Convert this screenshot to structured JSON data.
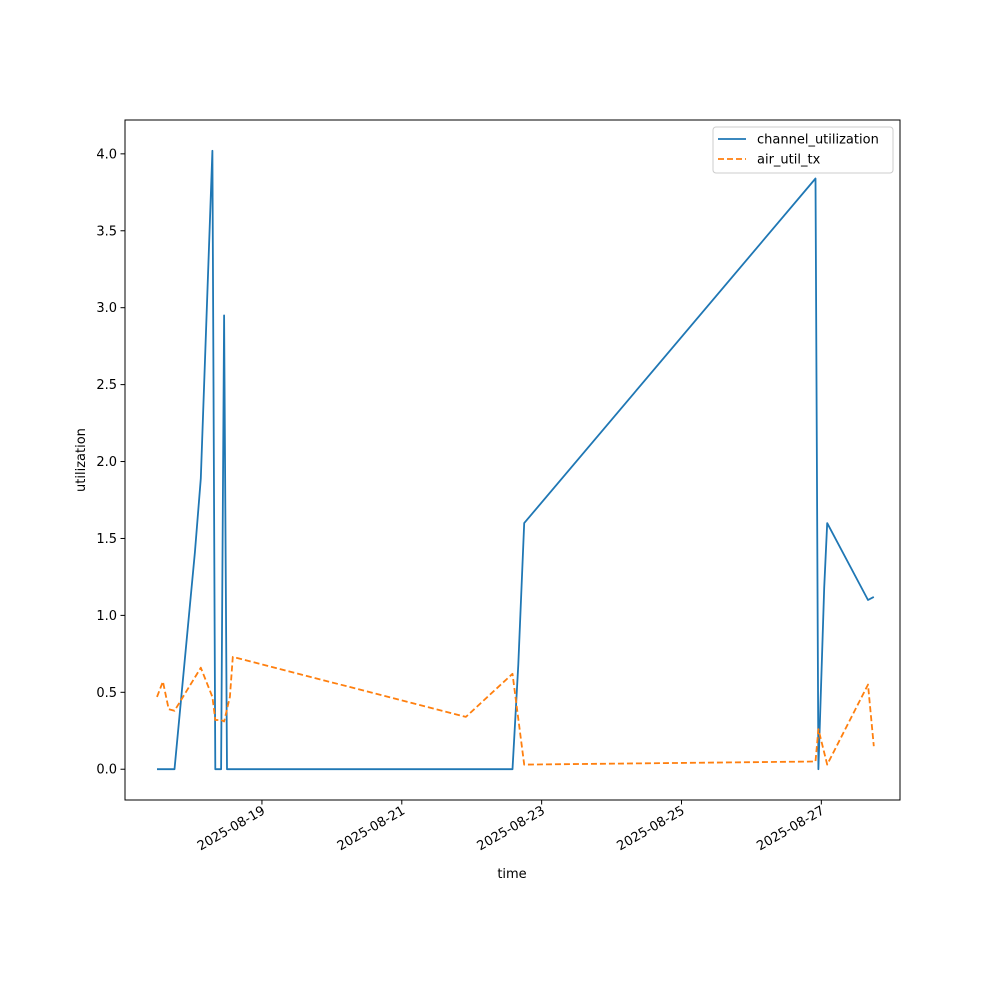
{
  "chart_data": {
    "type": "line",
    "xlabel": "time",
    "ylabel": "utilization",
    "xlim": [
      "2025-08-17T01:00",
      "2025-08-28T03:00"
    ],
    "ylim": [
      -0.2,
      4.22
    ],
    "x_ticks": [
      "2025-08-19",
      "2025-08-21",
      "2025-08-23",
      "2025-08-25",
      "2025-08-27"
    ],
    "y_ticks": [
      0.0,
      0.5,
      1.0,
      1.5,
      2.0,
      2.5,
      3.0,
      3.5,
      4.0
    ],
    "y_tick_labels": [
      "0.0",
      "0.5",
      "1.0",
      "1.5",
      "2.0",
      "2.5",
      "3.0",
      "3.5",
      "4.0"
    ],
    "grid": false,
    "legend_position": "top-right",
    "series": [
      {
        "name": "channel_utilization",
        "color": "#1f77b4",
        "dash": "solid",
        "points": [
          [
            "2025-08-17T12:00",
            0.0
          ],
          [
            "2025-08-17T18:00",
            0.0
          ],
          [
            "2025-08-18T01:00",
            1.41
          ],
          [
            "2025-08-18T03:00",
            1.89
          ],
          [
            "2025-08-18T07:00",
            4.02
          ],
          [
            "2025-08-18T08:00",
            0.0
          ],
          [
            "2025-08-18T10:00",
            0.0
          ],
          [
            "2025-08-18T11:00",
            2.95
          ],
          [
            "2025-08-18T12:00",
            0.0
          ],
          [
            "2025-08-18T14:00",
            0.0
          ],
          [
            "2025-08-22T14:00",
            0.0
          ],
          [
            "2025-08-22T16:00",
            0.68
          ],
          [
            "2025-08-22T18:00",
            1.6
          ],
          [
            "2025-08-26T22:00",
            3.84
          ],
          [
            "2025-08-26T23:00",
            0.0
          ],
          [
            "2025-08-27T01:00",
            1.18
          ],
          [
            "2025-08-27T02:00",
            1.6
          ],
          [
            "2025-08-27T16:00",
            1.1
          ],
          [
            "2025-08-27T18:00",
            1.12
          ]
        ]
      },
      {
        "name": "air_util_tx",
        "color": "#ff7f0e",
        "dash": "dashed",
        "points": [
          [
            "2025-08-17T12:00",
            0.47
          ],
          [
            "2025-08-17T14:00",
            0.57
          ],
          [
            "2025-08-17T16:00",
            0.39
          ],
          [
            "2025-08-17T18:00",
            0.38
          ],
          [
            "2025-08-18T03:00",
            0.66
          ],
          [
            "2025-08-18T07:00",
            0.47
          ],
          [
            "2025-08-18T08:00",
            0.32
          ],
          [
            "2025-08-18T10:00",
            0.32
          ],
          [
            "2025-08-18T11:00",
            0.31
          ],
          [
            "2025-08-18T13:00",
            0.47
          ],
          [
            "2025-08-18T14:00",
            0.73
          ],
          [
            "2025-08-21T22:00",
            0.34
          ],
          [
            "2025-08-22T14:00",
            0.62
          ],
          [
            "2025-08-22T18:00",
            0.03
          ],
          [
            "2025-08-26T22:00",
            0.05
          ],
          [
            "2025-08-26T23:00",
            0.26
          ],
          [
            "2025-08-27T02:00",
            0.03
          ],
          [
            "2025-08-27T16:00",
            0.55
          ],
          [
            "2025-08-27T18:00",
            0.15
          ]
        ]
      }
    ]
  }
}
